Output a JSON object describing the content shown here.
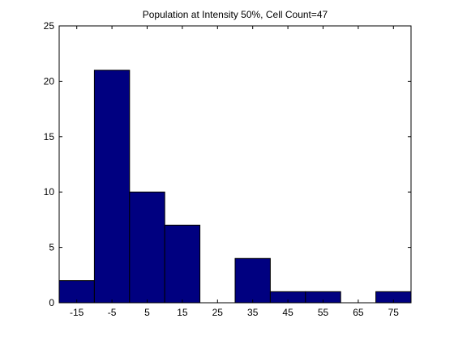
{
  "chart_data": {
    "type": "bar",
    "title": "Population at Intensity 50%, Cell Count=47",
    "xlabel": "",
    "ylabel": "",
    "categories": [
      "-15",
      "-5",
      "5",
      "15",
      "25",
      "35",
      "45",
      "55",
      "65",
      "75"
    ],
    "values": [
      2,
      21,
      10,
      7,
      0,
      4,
      1,
      1,
      0,
      1
    ],
    "x_tick_labels": [
      "-15",
      "-5",
      "5",
      "15",
      "25",
      "35",
      "45",
      "55",
      "65",
      "75"
    ],
    "y_ticks": [
      0,
      5,
      10,
      15,
      20,
      25
    ],
    "y_tick_labels": [
      "0",
      "5",
      "10",
      "15",
      "20",
      "25"
    ],
    "ylim": [
      0,
      25
    ],
    "grid": false,
    "legend": "none",
    "colors": {
      "bar_fill": "#000080",
      "bar_stroke": "#000000",
      "axes": "#000000",
      "background": "#ffffff"
    }
  }
}
